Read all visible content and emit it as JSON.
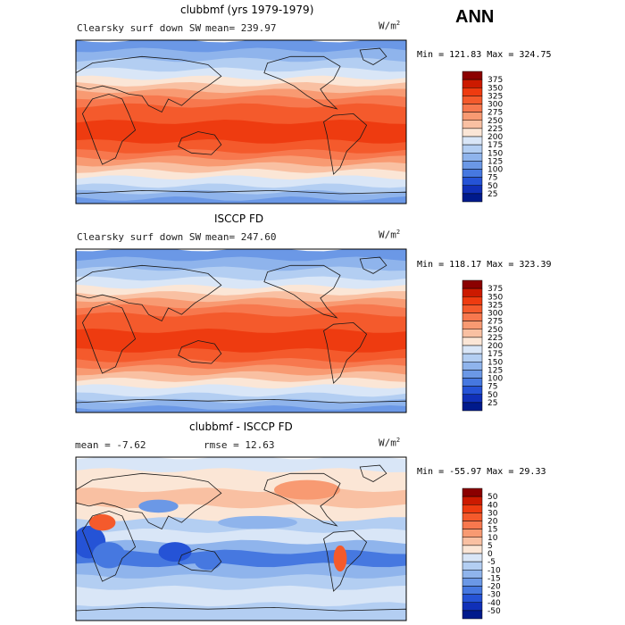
{
  "season": "ANN",
  "panels": [
    {
      "title": "clubbmf (yrs 1979-1979)",
      "field_label": "Clearsky surf down SW",
      "mean_text": "mean= 239.97",
      "units_base": "W/m",
      "units_exp": "2",
      "minmax": "Min = 121.83 Max = 324.75",
      "colorbar_levels": [
        "375",
        "350",
        "325",
        "300",
        "275",
        "250",
        "225",
        "200",
        "175",
        "150",
        "125",
        "100",
        "75",
        "50",
        "25"
      ],
      "colorbar_colors": [
        "#8b0000",
        "#cc1a00",
        "#ee3b10",
        "#f45a2c",
        "#f7784e",
        "#f89a72",
        "#f9c0a2",
        "#fbe6d6",
        "#d9e6f7",
        "#b3cef2",
        "#8fb4ec",
        "#6b98e6",
        "#4678e0",
        "#2553d6",
        "#1030b8",
        "#001a8c"
      ],
      "map_kind": "abs"
    },
    {
      "title": "ISCCP FD",
      "field_label": "Clearsky surf down SW",
      "mean_text": "mean= 247.60",
      "units_base": "W/m",
      "units_exp": "2",
      "minmax": "Min = 118.17 Max = 323.39",
      "colorbar_levels": [
        "375",
        "350",
        "325",
        "300",
        "275",
        "250",
        "225",
        "200",
        "175",
        "150",
        "125",
        "100",
        "75",
        "50",
        "25"
      ],
      "colorbar_colors": [
        "#8b0000",
        "#cc1a00",
        "#ee3b10",
        "#f45a2c",
        "#f7784e",
        "#f89a72",
        "#f9c0a2",
        "#fbe6d6",
        "#d9e6f7",
        "#b3cef2",
        "#8fb4ec",
        "#6b98e6",
        "#4678e0",
        "#2553d6",
        "#1030b8",
        "#001a8c"
      ],
      "map_kind": "abs"
    },
    {
      "title": "clubbmf - ISCCP FD",
      "field_label": "mean =  -7.62",
      "mean_text": "rmse =  12.63",
      "units_base": "W/m",
      "units_exp": "2",
      "minmax": "Min = -55.97 Max =  29.33",
      "colorbar_levels": [
        "50",
        "40",
        "30",
        "20",
        "15",
        "10",
        "5",
        "0",
        "-5",
        "-10",
        "-15",
        "-20",
        "-30",
        "-40",
        "-50"
      ],
      "colorbar_colors": [
        "#8b0000",
        "#cc1a00",
        "#ee3b10",
        "#f45a2c",
        "#f7784e",
        "#f89a72",
        "#f9c0a2",
        "#fbe6d6",
        "#d9e6f7",
        "#b3cef2",
        "#8fb4ec",
        "#6b98e6",
        "#4678e0",
        "#2553d6",
        "#1030b8",
        "#001a8c"
      ],
      "map_kind": "diff"
    }
  ],
  "chart_data": [
    {
      "type": "heatmap",
      "title": "clubbmf (yrs 1979-1979)",
      "subtitle": "Clearsky surf down SW",
      "mean": 239.97,
      "units": "W/m2",
      "min": 121.83,
      "max": 324.75,
      "levels": [
        25,
        50,
        75,
        100,
        125,
        150,
        175,
        200,
        225,
        250,
        275,
        300,
        325,
        350,
        375
      ]
    },
    {
      "type": "heatmap",
      "title": "ISCCP FD",
      "subtitle": "Clearsky surf down SW",
      "mean": 247.6,
      "units": "W/m2",
      "min": 118.17,
      "max": 323.39,
      "levels": [
        25,
        50,
        75,
        100,
        125,
        150,
        175,
        200,
        225,
        250,
        275,
        300,
        325,
        350,
        375
      ]
    },
    {
      "type": "heatmap",
      "title": "clubbmf - ISCCP FD",
      "mean": -7.62,
      "rmse": 12.63,
      "units": "W/m2",
      "min": -55.97,
      "max": 29.33,
      "levels": [
        -50,
        -40,
        -30,
        -20,
        -15,
        -10,
        -5,
        0,
        5,
        10,
        15,
        20,
        30,
        40,
        50
      ]
    }
  ]
}
